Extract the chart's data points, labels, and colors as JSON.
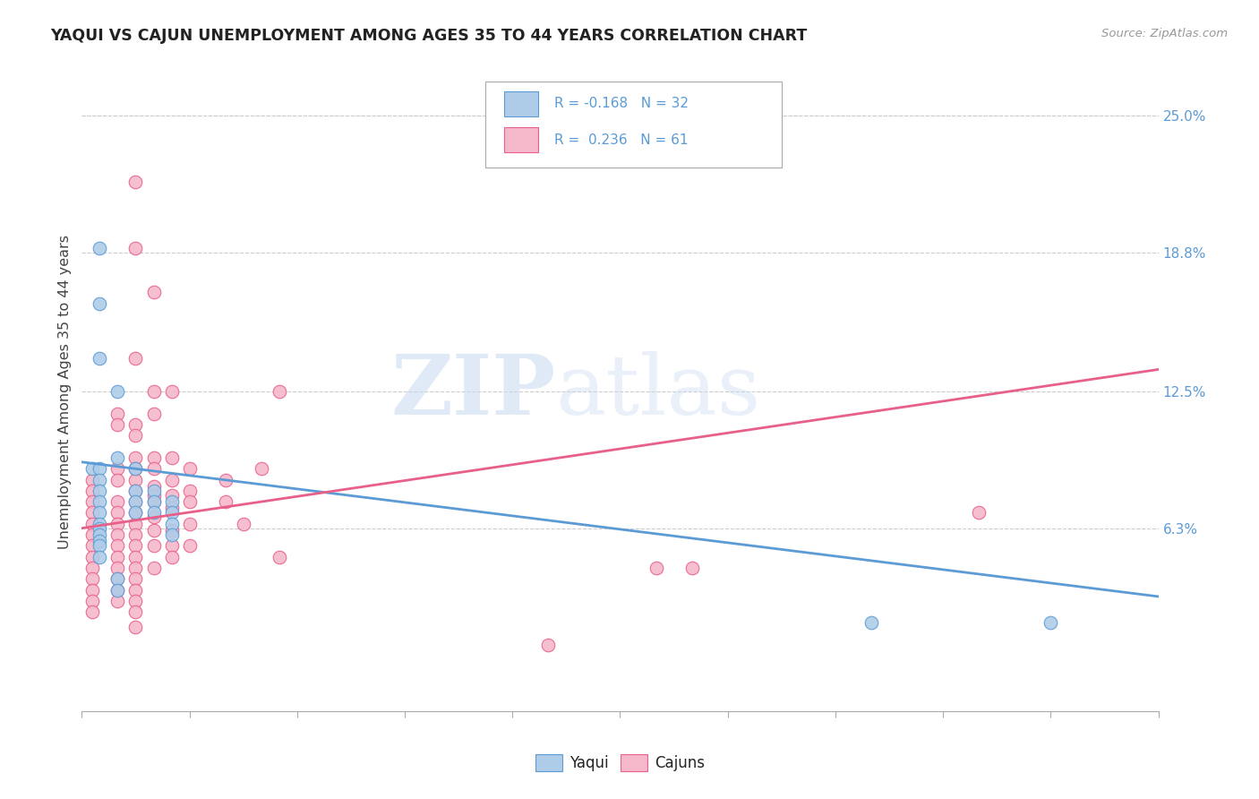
{
  "title": "YAQUI VS CAJUN UNEMPLOYMENT AMONG AGES 35 TO 44 YEARS CORRELATION CHART",
  "source": "Source: ZipAtlas.com",
  "ylabel": "Unemployment Among Ages 35 to 44 years",
  "right_yticks": [
    "25.0%",
    "18.8%",
    "12.5%",
    "6.3%"
  ],
  "right_ytick_vals": [
    25.0,
    18.8,
    12.5,
    6.3
  ],
  "xmin": 0.0,
  "xmax": 30.0,
  "ymin": -2.0,
  "ymax": 27.0,
  "watermark_zip": "ZIP",
  "watermark_atlas": "atlas",
  "yaqui_color": "#aecce8",
  "cajun_color": "#f5b8cb",
  "yaqui_edge_color": "#5b9bd5",
  "cajun_edge_color": "#e8608a",
  "yaqui_line_color": "#5b9bd5",
  "cajun_line_color": "#e8608a",
  "yaqui_line": [
    [
      0.0,
      9.3
    ],
    [
      30.0,
      3.2
    ]
  ],
  "cajun_line": [
    [
      0.0,
      6.3
    ],
    [
      30.0,
      13.5
    ]
  ],
  "yaqui_pts": [
    [
      0.3,
      9.0
    ],
    [
      0.5,
      19.0
    ],
    [
      0.5,
      16.5
    ],
    [
      0.5,
      14.0
    ],
    [
      1.0,
      12.5
    ],
    [
      1.0,
      9.5
    ],
    [
      0.5,
      9.0
    ],
    [
      0.5,
      8.5
    ],
    [
      0.5,
      8.0
    ],
    [
      0.5,
      7.5
    ],
    [
      0.5,
      7.0
    ],
    [
      0.5,
      6.5
    ],
    [
      0.5,
      6.3
    ],
    [
      0.5,
      6.0
    ],
    [
      0.5,
      5.7
    ],
    [
      0.5,
      5.5
    ],
    [
      0.5,
      5.0
    ],
    [
      1.0,
      4.0
    ],
    [
      1.0,
      3.5
    ],
    [
      1.5,
      9.0
    ],
    [
      1.5,
      8.0
    ],
    [
      1.5,
      7.5
    ],
    [
      1.5,
      7.0
    ],
    [
      2.0,
      8.0
    ],
    [
      2.0,
      7.5
    ],
    [
      2.0,
      7.0
    ],
    [
      2.5,
      7.5
    ],
    [
      2.5,
      7.0
    ],
    [
      2.5,
      6.5
    ],
    [
      2.5,
      6.0
    ],
    [
      22.0,
      2.0
    ],
    [
      27.0,
      2.0
    ]
  ],
  "cajun_pts": [
    [
      0.3,
      8.5
    ],
    [
      0.3,
      8.0
    ],
    [
      0.3,
      7.5
    ],
    [
      0.3,
      7.0
    ],
    [
      0.3,
      6.5
    ],
    [
      0.3,
      6.0
    ],
    [
      0.3,
      5.5
    ],
    [
      0.3,
      5.0
    ],
    [
      0.3,
      4.5
    ],
    [
      0.3,
      4.0
    ],
    [
      0.3,
      3.5
    ],
    [
      0.3,
      3.0
    ],
    [
      0.3,
      2.5
    ],
    [
      1.0,
      11.5
    ],
    [
      1.0,
      11.0
    ],
    [
      1.0,
      9.0
    ],
    [
      1.0,
      8.5
    ],
    [
      1.0,
      7.5
    ],
    [
      1.0,
      7.0
    ],
    [
      1.0,
      6.5
    ],
    [
      1.0,
      6.0
    ],
    [
      1.0,
      5.5
    ],
    [
      1.0,
      5.0
    ],
    [
      1.0,
      4.5
    ],
    [
      1.0,
      4.0
    ],
    [
      1.0,
      3.5
    ],
    [
      1.0,
      3.0
    ],
    [
      1.5,
      22.0
    ],
    [
      1.5,
      19.0
    ],
    [
      1.5,
      14.0
    ],
    [
      1.5,
      11.0
    ],
    [
      1.5,
      10.5
    ],
    [
      1.5,
      9.5
    ],
    [
      1.5,
      9.0
    ],
    [
      1.5,
      8.5
    ],
    [
      1.5,
      8.0
    ],
    [
      1.5,
      7.5
    ],
    [
      1.5,
      7.0
    ],
    [
      1.5,
      6.5
    ],
    [
      1.5,
      6.0
    ],
    [
      1.5,
      5.5
    ],
    [
      1.5,
      5.0
    ],
    [
      1.5,
      4.5
    ],
    [
      1.5,
      4.0
    ],
    [
      1.5,
      3.5
    ],
    [
      1.5,
      3.0
    ],
    [
      1.5,
      2.5
    ],
    [
      1.5,
      1.8
    ],
    [
      2.0,
      17.0
    ],
    [
      2.0,
      12.5
    ],
    [
      2.0,
      11.5
    ],
    [
      2.0,
      9.5
    ],
    [
      2.0,
      9.0
    ],
    [
      2.0,
      8.2
    ],
    [
      2.0,
      7.8
    ],
    [
      2.0,
      7.5
    ],
    [
      2.0,
      6.8
    ],
    [
      2.0,
      6.2
    ],
    [
      2.0,
      5.5
    ],
    [
      2.0,
      4.5
    ],
    [
      2.5,
      12.5
    ],
    [
      2.5,
      9.5
    ],
    [
      2.5,
      8.5
    ],
    [
      2.5,
      7.8
    ],
    [
      2.5,
      7.2
    ],
    [
      2.5,
      6.2
    ],
    [
      2.5,
      5.5
    ],
    [
      2.5,
      5.0
    ],
    [
      3.0,
      9.0
    ],
    [
      3.0,
      8.0
    ],
    [
      3.0,
      7.5
    ],
    [
      3.0,
      6.5
    ],
    [
      3.0,
      5.5
    ],
    [
      4.0,
      8.5
    ],
    [
      4.0,
      7.5
    ],
    [
      4.5,
      6.5
    ],
    [
      5.0,
      9.0
    ],
    [
      5.5,
      12.5
    ],
    [
      5.5,
      5.0
    ],
    [
      25.0,
      7.0
    ],
    [
      13.0,
      1.0
    ],
    [
      16.0,
      4.5
    ],
    [
      17.0,
      4.5
    ]
  ],
  "n_xticks": 11
}
